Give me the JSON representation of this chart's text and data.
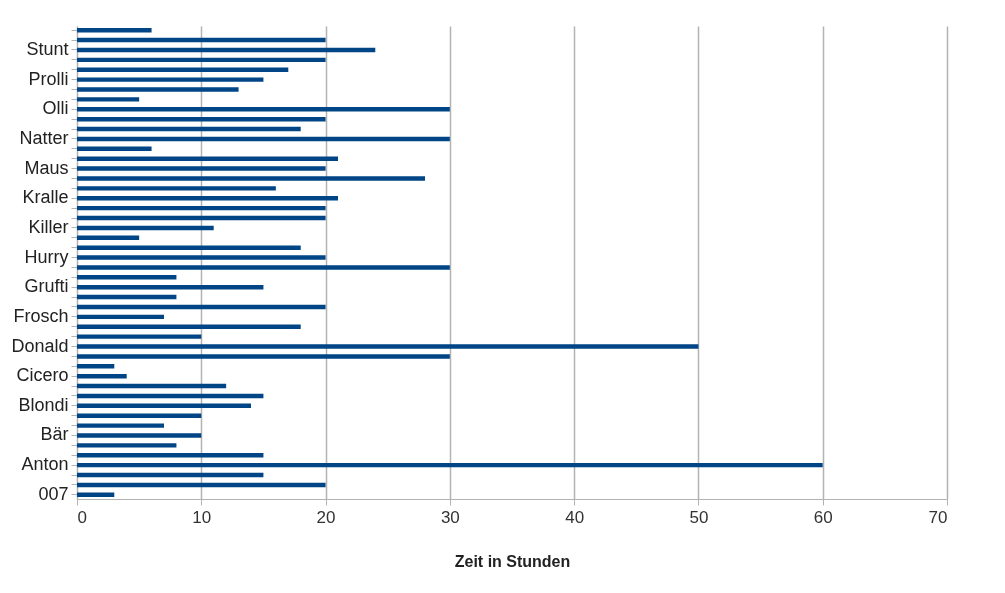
{
  "chart_data": {
    "type": "bar",
    "orientation": "horizontal",
    "xlabel": "Zeit in Stunden",
    "categories": [
      null,
      null,
      "Stunt",
      null,
      null,
      "Prolli",
      null,
      null,
      "Olli",
      null,
      null,
      "Natter",
      null,
      null,
      "Maus",
      null,
      null,
      "Kralle",
      null,
      null,
      "Killer",
      null,
      null,
      "Hurry",
      null,
      null,
      "Grufti",
      null,
      null,
      "Frosch",
      null,
      null,
      "Donald",
      null,
      null,
      "Cicero",
      null,
      null,
      "Blondi",
      null,
      null,
      "Bär",
      null,
      null,
      "Anton",
      null,
      null,
      "007"
    ],
    "values": [
      6,
      20,
      24,
      20,
      17,
      15,
      13,
      5,
      30,
      20,
      18,
      30,
      6,
      21,
      20,
      28,
      16,
      21,
      20,
      20,
      11,
      5,
      18,
      20,
      30,
      8,
      15,
      8,
      20,
      7,
      18,
      10,
      50,
      30,
      3,
      4,
      12,
      15,
      14,
      10,
      7,
      10,
      8,
      15,
      60,
      15,
      20,
      3
    ],
    "color": "#004586",
    "xlim": [
      0,
      70
    ],
    "xticks": [
      0,
      10,
      20,
      30,
      40,
      50,
      60,
      70
    ],
    "grid": "x"
  }
}
